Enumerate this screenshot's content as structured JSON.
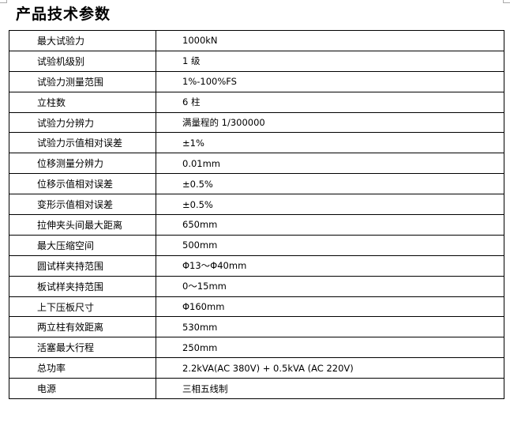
{
  "title": "产品技术参数",
  "rows": [
    {
      "label": "最大试验力",
      "value": "1000kN"
    },
    {
      "label": "试验机级别",
      "value": "1 级"
    },
    {
      "label": "试验力测量范围",
      "value": "1%-100%FS"
    },
    {
      "label": "立柱数",
      "value": "6 柱"
    },
    {
      "label": "试验力分辨力",
      "value": "满量程的 1/300000"
    },
    {
      "label": "试验力示值相对误差",
      "value": "±1%"
    },
    {
      "label": "位移测量分辨力",
      "value": "0.01mm"
    },
    {
      "label": "位移示值相对误差",
      "value": "±0.5%"
    },
    {
      "label": "变形示值相对误差",
      "value": "±0.5%"
    },
    {
      "label": "拉伸夹头间最大距离",
      "value": "650mm"
    },
    {
      "label": "最大压缩空间",
      "value": "500mm"
    },
    {
      "label": "圆试样夹持范围",
      "value": "Φ13～Φ40mm"
    },
    {
      "label": "板试样夹持范围",
      "value": "0～15mm"
    },
    {
      "label": "上下压板尺寸",
      "value": "Φ160mm"
    },
    {
      "label": "两立柱有效距离",
      "value": "530mm"
    },
    {
      "label": "活塞最大行程",
      "value": "250mm"
    },
    {
      "label": "总功率",
      "value": "2.2kVA(AC 380V) + 0.5kVA (AC 220V)"
    },
    {
      "label": "电源",
      "value": "三相五线制"
    }
  ]
}
